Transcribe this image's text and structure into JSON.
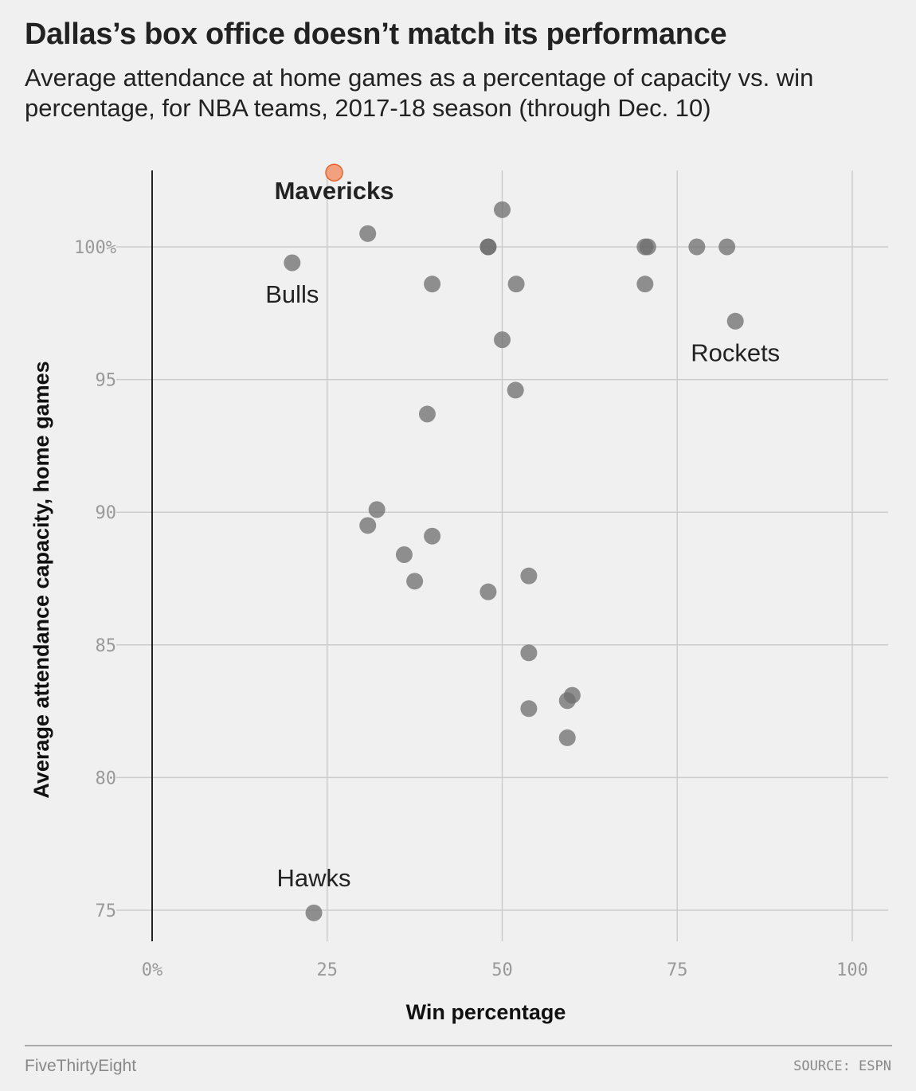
{
  "title": "Dallas’s box office doesn’t match its performance",
  "subtitle": "Average attendance at home games as a percentage of capacity vs. win percentage, for NBA teams, 2017-18 season (through Dec. 10)",
  "footer": {
    "brand": "FiveThirtyEight",
    "source": "SOURCE: ESPN"
  },
  "colors": {
    "point": "#6e6e6e",
    "highlight": "#f2a07e",
    "highlight_stroke": "#e8622c",
    "grid": "#cccccc"
  },
  "chart_data": {
    "type": "scatter",
    "xlabel": "Win percentage",
    "ylabel": "Average attendance capacity, home games",
    "xlim": [
      0,
      105
    ],
    "ylim": [
      73.9,
      103.5
    ],
    "xticks": [
      0,
      25,
      50,
      75,
      100
    ],
    "xtick_labels": [
      "0%",
      "25",
      "50",
      "75",
      "100"
    ],
    "yticks": [
      75,
      80,
      85,
      90,
      95,
      100
    ],
    "ytick_labels": [
      "75",
      "80",
      "85",
      "90",
      "95",
      "100%"
    ],
    "grid": true,
    "points": [
      {
        "x": 26.0,
        "y": 102.8,
        "highlight": true
      },
      {
        "x": 50.0,
        "y": 101.4
      },
      {
        "x": 30.8,
        "y": 100.5
      },
      {
        "x": 48.0,
        "y": 100.0
      },
      {
        "x": 48.0,
        "y": 100.0
      },
      {
        "x": 70.4,
        "y": 100.0
      },
      {
        "x": 70.8,
        "y": 100.0
      },
      {
        "x": 77.8,
        "y": 100.0
      },
      {
        "x": 82.1,
        "y": 100.0
      },
      {
        "x": 20.0,
        "y": 99.4
      },
      {
        "x": 40.0,
        "y": 98.6
      },
      {
        "x": 52.0,
        "y": 98.6
      },
      {
        "x": 70.4,
        "y": 98.6
      },
      {
        "x": 83.3,
        "y": 97.2
      },
      {
        "x": 50.0,
        "y": 96.5
      },
      {
        "x": 51.9,
        "y": 94.6
      },
      {
        "x": 39.3,
        "y": 93.7
      },
      {
        "x": 32.1,
        "y": 90.1
      },
      {
        "x": 30.8,
        "y": 89.5
      },
      {
        "x": 40.0,
        "y": 89.1
      },
      {
        "x": 36.0,
        "y": 88.4
      },
      {
        "x": 37.5,
        "y": 87.4
      },
      {
        "x": 53.8,
        "y": 87.6
      },
      {
        "x": 48.0,
        "y": 87.0
      },
      {
        "x": 53.8,
        "y": 84.7
      },
      {
        "x": 60.0,
        "y": 83.1
      },
      {
        "x": 59.3,
        "y": 82.9
      },
      {
        "x": 53.8,
        "y": 82.6
      },
      {
        "x": 59.3,
        "y": 81.5
      },
      {
        "x": 23.1,
        "y": 74.9
      }
    ],
    "annotations": [
      {
        "label": "Mavericks",
        "x": 26.0,
        "y": 101.8,
        "bold": true,
        "anchor": "middle"
      },
      {
        "label": "Bulls",
        "x": 20.0,
        "y": 97.9,
        "bold": false,
        "anchor": "middle"
      },
      {
        "label": "Rockets",
        "x": 83.3,
        "y": 95.7,
        "bold": false,
        "anchor": "middle"
      },
      {
        "label": "Hawks",
        "x": 23.1,
        "y": 75.9,
        "bold": false,
        "anchor": "middle"
      }
    ]
  }
}
